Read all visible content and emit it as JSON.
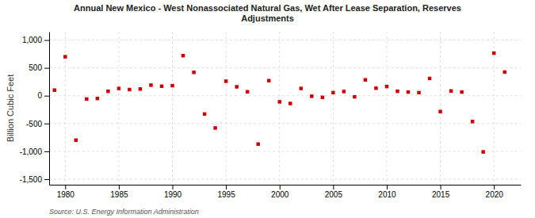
{
  "chart_data": {
    "type": "scatter",
    "title": "Annual New Mexico - West Nonassociated Natural Gas, Wet After Lease Separation, Reserves\nAdjustments",
    "ylabel": "Billion Cubic Feet",
    "source": "Source: U.S. Energy Information Administration",
    "color": "#cc0000",
    "marker": "square",
    "grid": true,
    "x": [
      1979,
      1980,
      1981,
      1982,
      1983,
      1984,
      1985,
      1986,
      1987,
      1988,
      1989,
      1990,
      1991,
      1992,
      1993,
      1994,
      1995,
      1996,
      1997,
      1998,
      1999,
      2000,
      2001,
      2002,
      2003,
      2004,
      2005,
      2006,
      2007,
      2008,
      2009,
      2010,
      2011,
      2012,
      2013,
      2014,
      2015,
      2016,
      2017,
      2018,
      2019,
      2020,
      2021
    ],
    "values": [
      100,
      700,
      -800,
      -60,
      -50,
      80,
      130,
      110,
      120,
      190,
      170,
      180,
      720,
      420,
      -330,
      -580,
      260,
      160,
      70,
      -870,
      270,
      -110,
      -140,
      130,
      -10,
      -30,
      55,
      75,
      -20,
      285,
      135,
      165,
      80,
      65,
      55,
      310,
      -285,
      85,
      65,
      -465,
      -1010,
      765,
      425
    ],
    "xlim": [
      1978.5,
      2022.5
    ],
    "xticks": [
      1980,
      1985,
      1990,
      1995,
      2000,
      2005,
      2010,
      2015,
      2020
    ],
    "ylim": [
      -1600,
      1150
    ],
    "yticks": [
      {
        "value": -1500,
        "label": "-1,500"
      },
      {
        "value": -1000,
        "label": "-1,000"
      },
      -500,
      0,
      500,
      {
        "value": 1000,
        "label": "1,000"
      }
    ]
  }
}
